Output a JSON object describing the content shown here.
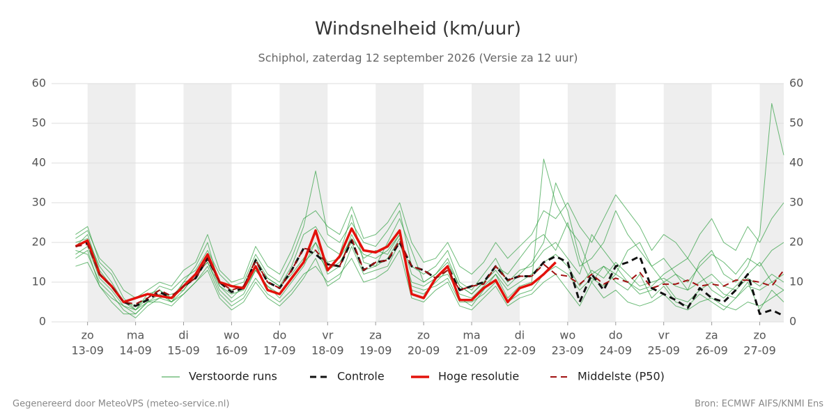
{
  "chart_data": {
    "type": "line",
    "title": "Windsnelheid (km/uur)",
    "subtitle": "Schiphol, zaterdag 12 september 2026 (Versie za 12 uur)",
    "footer_left": "Gegenereerd door MeteoVPS (meteo-service.nl)",
    "footer_right": "Bron: ECMWF AIFS/KNMI Ens",
    "xlim": [
      -0.75,
      14.5
    ],
    "xticks": [
      {
        "value": 0,
        "label": "zo",
        "date": "13-09"
      },
      {
        "value": 1,
        "label": "ma",
        "date": "14-09"
      },
      {
        "value": 2,
        "label": "di",
        "date": "15-09"
      },
      {
        "value": 3,
        "label": "wo",
        "date": "16-09"
      },
      {
        "value": 4,
        "label": "do",
        "date": "17-09"
      },
      {
        "value": 5,
        "label": "vr",
        "date": "18-09"
      },
      {
        "value": 6,
        "label": "za",
        "date": "19-09"
      },
      {
        "value": 7,
        "label": "zo",
        "date": "20-09"
      },
      {
        "value": 8,
        "label": "ma",
        "date": "21-09"
      },
      {
        "value": 9,
        "label": "di",
        "date": "22-09"
      },
      {
        "value": 10,
        "label": "wo",
        "date": "23-09"
      },
      {
        "value": 11,
        "label": "do",
        "date": "24-09"
      },
      {
        "value": 12,
        "label": "vr",
        "date": "25-09"
      },
      {
        "value": 13,
        "label": "za",
        "date": "26-09"
      },
      {
        "value": 14,
        "label": "zo",
        "date": "27-09"
      }
    ],
    "ylim": [
      0,
      60
    ],
    "yticks": [
      0,
      10,
      20,
      30,
      40,
      50,
      60
    ],
    "grid": true,
    "weekend_shading": "#eeeeee",
    "x": [
      -0.25,
      0,
      0.25,
      0.5,
      0.75,
      1,
      1.25,
      1.5,
      1.75,
      2,
      2.25,
      2.5,
      2.75,
      3,
      3.25,
      3.5,
      3.75,
      4,
      4.25,
      4.5,
      4.75,
      5,
      5.25,
      5.5,
      5.75,
      6,
      6.25,
      6.5,
      6.75,
      7,
      7.25,
      7.5,
      7.75,
      8,
      8.25,
      8.5,
      8.75,
      9,
      9.25,
      9.5,
      9.75,
      10,
      10.25,
      10.5,
      10.75,
      11,
      11.25,
      11.5,
      11.75,
      12,
      12.25,
      12.5,
      12.75,
      13,
      13.25,
      13.5,
      13.75,
      14,
      14.25,
      14.5
    ],
    "ensemble": {
      "name": "Verstoorde runs",
      "color": "#2e9e3e",
      "members": [
        [
          22,
          24,
          15,
          12,
          6,
          3,
          7,
          8,
          5,
          10,
          14,
          20,
          9,
          6,
          9,
          16,
          11,
          9,
          14,
          22,
          24,
          19,
          17,
          27,
          15,
          14,
          20,
          26,
          18,
          10,
          12,
          16,
          9,
          7,
          10,
          14,
          12,
          16,
          20,
          22,
          18,
          25,
          14,
          16,
          20,
          28,
          22,
          18,
          14,
          10,
          12,
          8,
          15,
          18,
          12,
          10,
          14,
          22,
          55,
          42
        ],
        [
          18,
          17,
          10,
          7,
          3,
          1,
          4,
          6,
          7,
          8,
          12,
          15,
          8,
          5,
          7,
          13,
          9,
          6,
          10,
          14,
          20,
          12,
          14,
          22,
          16,
          18,
          17,
          22,
          8,
          7,
          10,
          13,
          6,
          4,
          8,
          12,
          6,
          9,
          10,
          41,
          30,
          24,
          20,
          12,
          14,
          10,
          8,
          12,
          6,
          9,
          5,
          4,
          7,
          5,
          3,
          6,
          10,
          3,
          8,
          5
        ],
        [
          20,
          21,
          14,
          10,
          5,
          4,
          6,
          9,
          8,
          11,
          13,
          18,
          12,
          9,
          10,
          17,
          12,
          10,
          16,
          24,
          38,
          22,
          20,
          25,
          20,
          19,
          23,
          28,
          14,
          12,
          14,
          18,
          10,
          8,
          12,
          16,
          10,
          13,
          14,
          18,
          20,
          16,
          12,
          22,
          18,
          14,
          10,
          8,
          9,
          12,
          14,
          16,
          12,
          8,
          6,
          9,
          12,
          15,
          10,
          8
        ],
        [
          16,
          18,
          9,
          5,
          2,
          2,
          5,
          5,
          4,
          7,
          10,
          14,
          7,
          4,
          6,
          11,
          7,
          5,
          8,
          12,
          14,
          10,
          12,
          16,
          10,
          11,
          13,
          18,
          6,
          5,
          8,
          10,
          4,
          3,
          6,
          9,
          4,
          6,
          7,
          10,
          12,
          8,
          4,
          10,
          6,
          8,
          5,
          4,
          5,
          7,
          4,
          3,
          5,
          6,
          4,
          3,
          5,
          4,
          6,
          8
        ],
        [
          21,
          23,
          16,
          13,
          8,
          6,
          8,
          10,
          9,
          13,
          15,
          22,
          13,
          10,
          11,
          19,
          14,
          12,
          18,
          26,
          28,
          24,
          22,
          29,
          21,
          22,
          25,
          30,
          20,
          15,
          16,
          20,
          14,
          12,
          15,
          20,
          16,
          19,
          22,
          28,
          26,
          30,
          24,
          20,
          26,
          32,
          28,
          24,
          18,
          22,
          20,
          16,
          22,
          26,
          20,
          18,
          24,
          20,
          26,
          30
        ],
        [
          14,
          15,
          9,
          6,
          4,
          3,
          5,
          7,
          5,
          7,
          10,
          13,
          6,
          3,
          5,
          10,
          6,
          4,
          7,
          11,
          16,
          9,
          11,
          19,
          12,
          13,
          14,
          20,
          10,
          9,
          11,
          12,
          7,
          6,
          9,
          12,
          8,
          10,
          12,
          15,
          17,
          14,
          9,
          13,
          11,
          15,
          12,
          9,
          10,
          11,
          9,
          8,
          10,
          12,
          9,
          8,
          11,
          9,
          12,
          10
        ],
        [
          19,
          22,
          13,
          9,
          5,
          3,
          6,
          8,
          6,
          10,
          11,
          16,
          10,
          8,
          9,
          14,
          11,
          9,
          12,
          16,
          20,
          15,
          16,
          21,
          17,
          16,
          18,
          22,
          12,
          10,
          12,
          15,
          9,
          7,
          10,
          13,
          9,
          12,
          15,
          20,
          35,
          28,
          16,
          10,
          14,
          12,
          18,
          20,
          14,
          16,
          12,
          10,
          14,
          17,
          15,
          12,
          16,
          14,
          18,
          20
        ],
        [
          17,
          19,
          11,
          8,
          4,
          2,
          5,
          6,
          5,
          8,
          12,
          15,
          9,
          7,
          8,
          13,
          9,
          7,
          11,
          15,
          18,
          13,
          15,
          20,
          13,
          14,
          16,
          21,
          9,
          8,
          9,
          11,
          5,
          5,
          7,
          10,
          5,
          7,
          8,
          12,
          14,
          12,
          8,
          11,
          9,
          12,
          10,
          7,
          8,
          10,
          6,
          5,
          8,
          10,
          7,
          6,
          9,
          8,
          10,
          12
        ]
      ]
    },
    "series": [
      {
        "name": "Controle",
        "color": "#111111",
        "dashed": true,
        "width": 3,
        "values": [
          19,
          20,
          12,
          9,
          5,
          4,
          5.5,
          7.5,
          6,
          9,
          11,
          16,
          10,
          7.5,
          8.5,
          15.5,
          10,
          8.5,
          13,
          18.5,
          17,
          14.5,
          14,
          20.5,
          13,
          15,
          15.5,
          20,
          14,
          13,
          11,
          14,
          8,
          9,
          10,
          14,
          10.5,
          11.5,
          11.5,
          15,
          16.5,
          15,
          5,
          12,
          8,
          14,
          15,
          16.5,
          8.5,
          7,
          5.5,
          3.5,
          8.5,
          6,
          5,
          8,
          12,
          2,
          3,
          1.5
        ]
      },
      {
        "name": "Hoge resolutie",
        "color": "#e3120b",
        "dashed": false,
        "width": 3.5,
        "values": [
          19,
          20.5,
          12,
          9,
          5,
          6,
          7,
          6.5,
          6,
          9,
          12,
          17,
          10,
          9,
          8.5,
          14,
          8,
          7,
          11,
          15,
          23,
          13,
          16.5,
          23.5,
          18,
          17.5,
          19,
          23,
          7,
          6,
          11,
          14,
          5.5,
          5.5,
          8.5,
          10.5,
          5,
          8.5,
          9.5,
          12,
          15,
          null,
          null,
          null,
          null,
          null,
          null,
          null,
          null,
          null,
          null,
          null,
          null,
          null,
          null,
          null,
          null,
          null,
          null,
          null
        ]
      },
      {
        "name": "Middelste (P50)",
        "color": "#a01010",
        "dashed": true,
        "width": 2,
        "values": [
          19,
          19.5,
          12,
          9,
          5,
          4.5,
          6,
          8,
          6.5,
          9,
          11,
          16,
          10,
          8,
          9,
          15.5,
          10,
          8.5,
          13,
          18.5,
          18,
          14.5,
          14,
          21,
          13,
          15,
          15.5,
          20.5,
          14,
          13,
          11,
          13,
          8,
          9,
          9.5,
          14,
          10.5,
          11.5,
          11.5,
          14.5,
          12,
          11.5,
          9.5,
          12,
          9.5,
          11,
          10,
          12.5,
          8.5,
          9.5,
          9.5,
          10.5,
          9,
          9.5,
          9,
          10.5,
          10.5,
          10,
          9,
          13
        ]
      }
    ]
  }
}
